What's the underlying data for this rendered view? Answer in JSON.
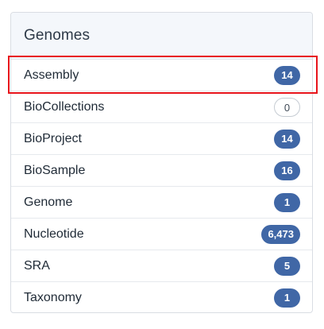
{
  "panel": {
    "title": "Genomes"
  },
  "items": [
    {
      "label": "Assembly",
      "count": "14"
    },
    {
      "label": "BioCollections",
      "count": "0"
    },
    {
      "label": "BioProject",
      "count": "14"
    },
    {
      "label": "BioSample",
      "count": "16"
    },
    {
      "label": "Genome",
      "count": "1"
    },
    {
      "label": "Nucleotide",
      "count": "6,473"
    },
    {
      "label": "SRA",
      "count": "5"
    },
    {
      "label": "Taxonomy",
      "count": "1"
    }
  ],
  "colors": {
    "badge": "#4067a6",
    "badge_zero_border": "#c6ccd3",
    "highlight": "#e8141b",
    "header_bg": "#f4f7fb"
  }
}
